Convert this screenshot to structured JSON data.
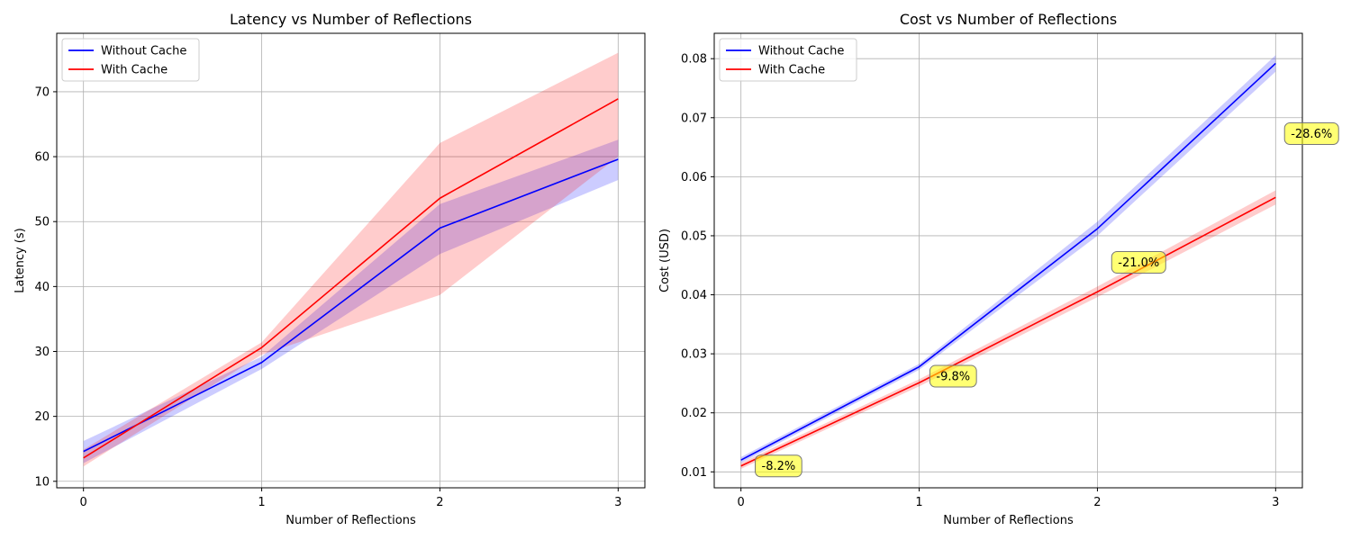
{
  "chart_data": [
    {
      "type": "line",
      "title": "Latency vs Number of Reflections",
      "xlabel": "Number of Reflections",
      "ylabel": "Latency (s)",
      "x": [
        0,
        1,
        2,
        3
      ],
      "xticks": [
        0,
        1,
        2,
        3
      ],
      "yticks": [
        10,
        20,
        30,
        40,
        50,
        60,
        70
      ],
      "xlim": [
        -0.15,
        3.15
      ],
      "ylim": [
        9,
        79
      ],
      "grid": true,
      "legend_position": "top-left",
      "series": [
        {
          "name": "Without Cache",
          "color": "#0000ff",
          "values": [
            14.6,
            28.3,
            49.0,
            59.6
          ],
          "lower": [
            12.8,
            27.3,
            45.0,
            56.4
          ],
          "upper": [
            16.2,
            29.2,
            52.7,
            62.6
          ]
        },
        {
          "name": "With Cache",
          "color": "#ff0000",
          "values": [
            13.6,
            30.6,
            53.6,
            68.9
          ],
          "lower": [
            12.3,
            29.5,
            38.7,
            60.0
          ],
          "upper": [
            14.9,
            31.4,
            62.1,
            76.0
          ]
        }
      ],
      "annotations": []
    },
    {
      "type": "line",
      "title": "Cost vs Number of Reflections",
      "xlabel": "Number of Reflections",
      "ylabel": "Cost (USD)",
      "x": [
        0,
        1,
        2,
        3
      ],
      "xticks": [
        0,
        1,
        2,
        3
      ],
      "yticks": [
        0.01,
        0.02,
        0.03,
        0.04,
        0.05,
        0.06,
        0.07,
        0.08
      ],
      "ytick_labels": [
        "0.01",
        "0.02",
        "0.03",
        "0.04",
        "0.05",
        "0.06",
        "0.07",
        "0.08"
      ],
      "xlim": [
        -0.15,
        3.15
      ],
      "ylim": [
        0.0073,
        0.0843
      ],
      "grid": true,
      "legend_position": "top-left",
      "series": [
        {
          "name": "Without Cache",
          "color": "#0000ff",
          "values": [
            0.012,
            0.0278,
            0.0512,
            0.0792
          ],
          "lower": [
            0.0115,
            0.0273,
            0.05,
            0.0778
          ],
          "upper": [
            0.0125,
            0.0283,
            0.0524,
            0.0806
          ]
        },
        {
          "name": "With Cache",
          "color": "#ff0000",
          "values": [
            0.011,
            0.0251,
            0.0405,
            0.0565
          ],
          "lower": [
            0.0105,
            0.0245,
            0.0396,
            0.0553
          ],
          "upper": [
            0.0115,
            0.0257,
            0.0414,
            0.0577
          ]
        }
      ],
      "annotations": [
        {
          "text": "-8.2%",
          "x": 0.08,
          "y": 0.011
        },
        {
          "text": "-9.8%",
          "x": 1.06,
          "y": 0.0262
        },
        {
          "text": "-21.0%",
          "x": 2.08,
          "y": 0.0455
        },
        {
          "text": "-28.6%",
          "x": 3.05,
          "y": 0.0673
        }
      ]
    }
  ]
}
